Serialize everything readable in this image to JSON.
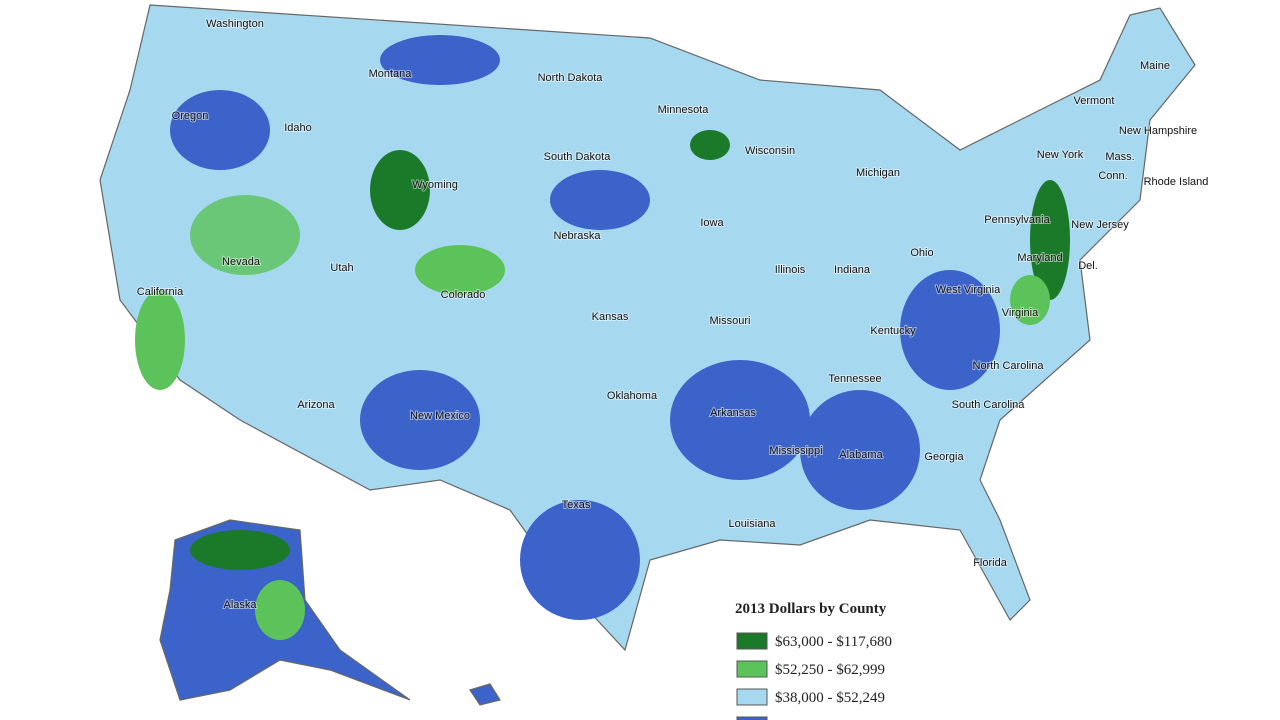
{
  "legend": {
    "title": "2013 Dollars by County",
    "items": [
      {
        "label": "$63,000 - $117,680",
        "color": "#1a7a2a"
      },
      {
        "label": "$52,250 - $62,999",
        "color": "#5cc35a"
      },
      {
        "label": "$38,000 - $52,249",
        "color": "#a6d8f0"
      }
    ],
    "partial_color": "#3b63c9"
  },
  "states": [
    "Washington",
    "Montana",
    "North Dakota",
    "Minnesota",
    "Maine",
    "Vermont",
    "New Hampshire",
    "Mass.",
    "Conn.",
    "Rhode Island",
    "New York",
    "Oregon",
    "Idaho",
    "Wisconsin",
    "South Dakota",
    "Michigan",
    "Wyoming",
    "Pennsylvania",
    "New Jersey",
    "Iowa",
    "Nebraska",
    "Nevada",
    "Utah",
    "Colorado",
    "California",
    "Illinois",
    "Indiana",
    "Ohio",
    "Maryland",
    "Del.",
    "West Virginia",
    "Kansas",
    "Missouri",
    "Kentucky",
    "Virginia",
    "North Carolina",
    "Tennessee",
    "Oklahoma",
    "Arkansas",
    "Arizona",
    "New Mexico",
    "South Carolina",
    "Mississippi",
    "Alabama",
    "Georgia",
    "Texas",
    "Louisiana",
    "Florida",
    "Alaska"
  ]
}
